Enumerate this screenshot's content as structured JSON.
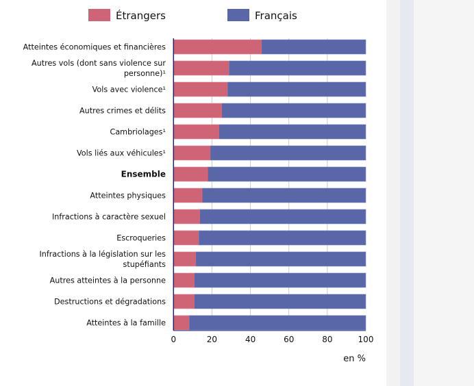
{
  "chart_data": {
    "type": "bar",
    "orientation": "horizontal",
    "stacked": true,
    "title": "",
    "xlabel": "en %",
    "ylabel": "",
    "xlim": [
      0,
      100
    ],
    "xticks": [
      "0",
      "20",
      "40",
      "60",
      "80",
      "100"
    ],
    "grid": true,
    "legend_position": "top",
    "categories": [
      [
        "Atteintes économiques et financières"
      ],
      [
        "Autres vols (dont sans violence sur",
        "personne)¹"
      ],
      [
        "Vols avec violence¹"
      ],
      [
        "Autres crimes et délits"
      ],
      [
        "Cambriolages¹"
      ],
      [
        "Vols liés aux véhicules¹"
      ],
      [
        "Ensemble"
      ],
      [
        "Atteintes physiques"
      ],
      [
        "Infractions à caractère sexuel"
      ],
      [
        "Escroqueries"
      ],
      [
        "Infractions à la législation sur les",
        "stupéfiants"
      ],
      [
        "Autres atteintes à la personne"
      ],
      [
        "Destructions et dégradations"
      ],
      [
        "Atteintes à la famille"
      ]
    ],
    "bold_category": 6,
    "series": [
      {
        "name": "Étrangers",
        "color": "#d06477",
        "values": [
          45.8,
          28.9,
          28.1,
          25.1,
          23.6,
          19.1,
          17.8,
          14.9,
          13.7,
          13.2,
          11.6,
          10.8,
          10.8,
          8.2
        ]
      },
      {
        "name": "Français",
        "color": "#5967a9",
        "values": [
          54.2,
          71.1,
          71.9,
          74.9,
          76.4,
          80.9,
          82.2,
          85.1,
          86.3,
          86.8,
          88.4,
          89.2,
          89.2,
          91.8
        ]
      }
    ]
  }
}
